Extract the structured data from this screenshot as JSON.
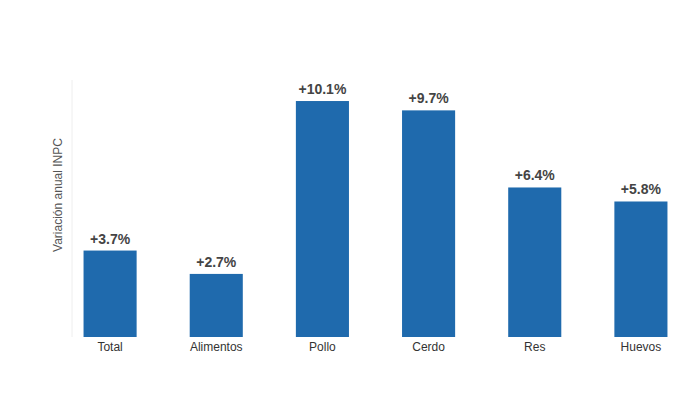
{
  "chart_data": {
    "type": "bar",
    "y_label": "Variación anual INPC",
    "categories": [
      "Total",
      "Alimentos",
      "Pollo",
      "Cerdo",
      "Res",
      "Huevos"
    ],
    "values": [
      3.7,
      2.7,
      10.1,
      9.7,
      6.4,
      5.8
    ],
    "value_labels": [
      "+3.7%",
      "+2.7%",
      "+10.1%",
      "+9.7%",
      "+6.4%",
      "+5.8%"
    ],
    "color": "#1f6aad",
    "ylim": [
      0,
      11
    ],
    "grid": false,
    "data_labels": true,
    "tick_labels": "x"
  }
}
